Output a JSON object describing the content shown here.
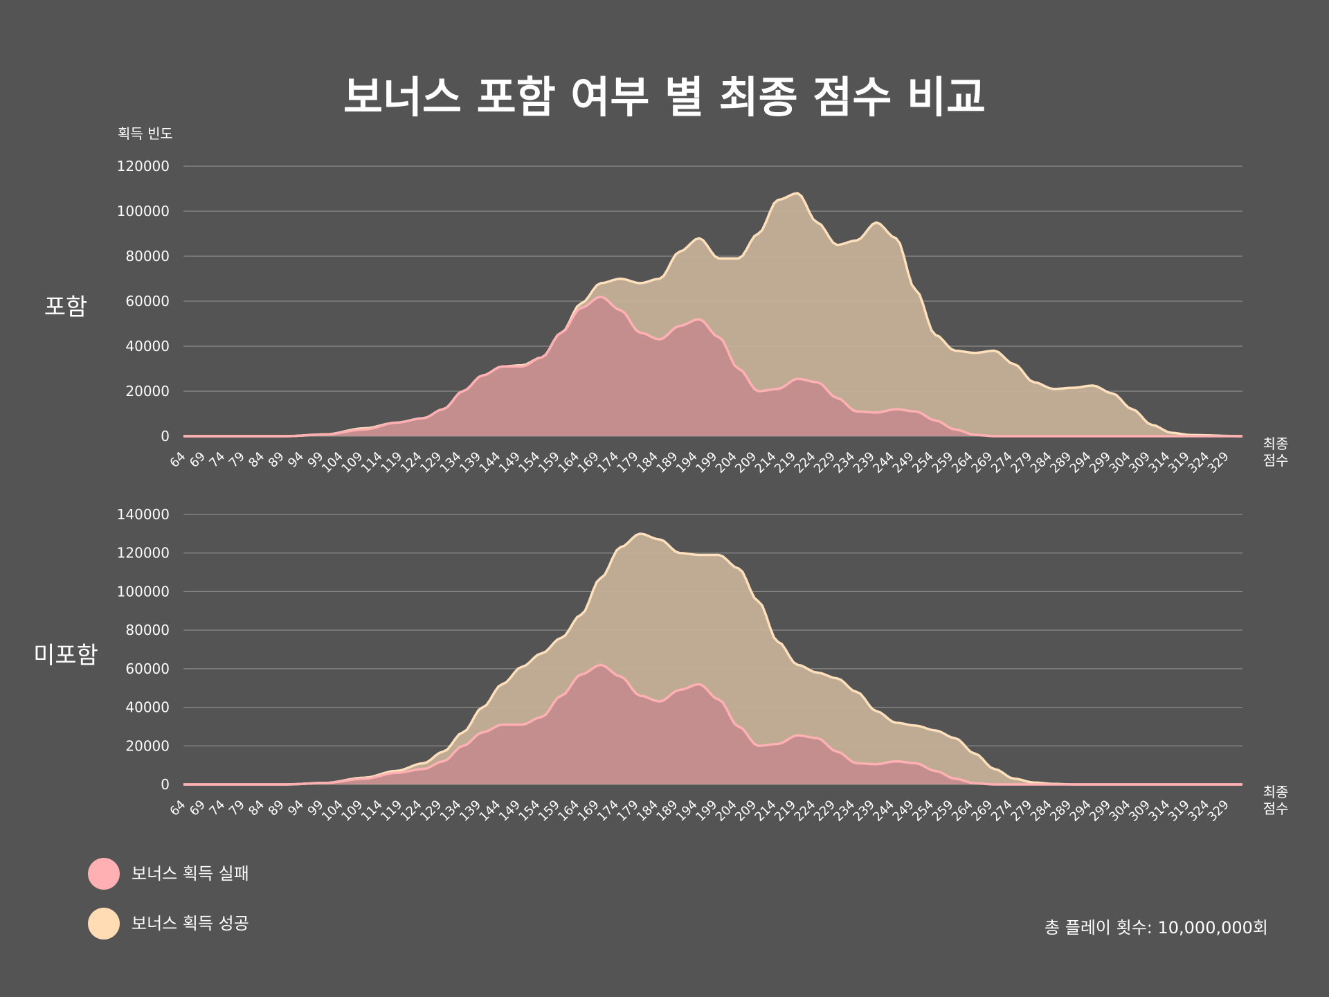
{
  "title": "보너스 포함 여부 별 최종 점수 비교",
  "y_axis_label": "획득 빈도",
  "x_axis_label_line1": "최종",
  "x_axis_label_line2": "점수",
  "footer_note": "총 플레이 횟수: 10,000,000회",
  "colors": {
    "background": "#545454",
    "fail_fill": "#c48c8e",
    "fail_line": "#ffb0b2",
    "success_fill": "#c9b29a",
    "success_line": "#ffe0bd",
    "grid": "#8a8a8a"
  },
  "legend": [
    {
      "label": "보너스 획득 실패",
      "color": "#ffb0b2"
    },
    {
      "label": "보너스 획득 성공",
      "color": "#ffdcb4"
    }
  ],
  "chart_data": [
    {
      "type": "area",
      "panel_label": "포함",
      "x_ticks": [
        64,
        69,
        74,
        79,
        84,
        89,
        94,
        99,
        104,
        109,
        114,
        119,
        124,
        129,
        134,
        139,
        144,
        149,
        154,
        159,
        164,
        169,
        174,
        179,
        184,
        189,
        194,
        199,
        204,
        209,
        214,
        219,
        224,
        229,
        234,
        239,
        244,
        249,
        254,
        259,
        264,
        269,
        274,
        279,
        284,
        289,
        294,
        299,
        304,
        309,
        314,
        319,
        324,
        329
      ],
      "y_ticks": [
        0,
        20000,
        40000,
        60000,
        80000,
        100000,
        120000
      ],
      "xlim": [
        64,
        333
      ],
      "ylim": [
        0,
        120000
      ],
      "grid": true,
      "series": [
        {
          "name": "보너스 획득 성공",
          "points": [
            [
              64,
              0
            ],
            [
              90,
              0
            ],
            [
              100,
              800
            ],
            [
              110,
              3500
            ],
            [
              118,
              6000
            ],
            [
              125,
              8000
            ],
            [
              130,
              12000
            ],
            [
              135,
              20000
            ],
            [
              140,
              27000
            ],
            [
              145,
              31000
            ],
            [
              150,
              31500
            ],
            [
              155,
              35000
            ],
            [
              160,
              46000
            ],
            [
              165,
              59000
            ],
            [
              170,
              68000
            ],
            [
              175,
              70000
            ],
            [
              180,
              68000
            ],
            [
              185,
              70000
            ],
            [
              190,
              82000
            ],
            [
              195,
              88000
            ],
            [
              200,
              79000
            ],
            [
              205,
              79000
            ],
            [
              210,
              90000
            ],
            [
              215,
              105000
            ],
            [
              220,
              108000
            ],
            [
              225,
              95000
            ],
            [
              230,
              85000
            ],
            [
              235,
              87000
            ],
            [
              240,
              95000
            ],
            [
              245,
              88000
            ],
            [
              250,
              65000
            ],
            [
              255,
              45000
            ],
            [
              260,
              38000
            ],
            [
              265,
              37000
            ],
            [
              270,
              38000
            ],
            [
              275,
              32000
            ],
            [
              280,
              24000
            ],
            [
              285,
              21000
            ],
            [
              290,
              21500
            ],
            [
              295,
              22500
            ],
            [
              300,
              19000
            ],
            [
              305,
              12000
            ],
            [
              310,
              5000
            ],
            [
              315,
              1500
            ],
            [
              320,
              500
            ],
            [
              333,
              0
            ]
          ]
        },
        {
          "name": "보너스 획득 실패",
          "points": [
            [
              64,
              0
            ],
            [
              90,
              0
            ],
            [
              100,
              800
            ],
            [
              110,
              3000
            ],
            [
              118,
              6000
            ],
            [
              125,
              8000
            ],
            [
              130,
              12000
            ],
            [
              135,
              20000
            ],
            [
              140,
              27000
            ],
            [
              145,
              31000
            ],
            [
              150,
              31000
            ],
            [
              155,
              35000
            ],
            [
              160,
              46000
            ],
            [
              165,
              57000
            ],
            [
              170,
              62000
            ],
            [
              175,
              56000
            ],
            [
              180,
              46000
            ],
            [
              185,
              43000
            ],
            [
              190,
              49000
            ],
            [
              195,
              52000
            ],
            [
              200,
              44000
            ],
            [
              205,
              30000
            ],
            [
              210,
              20000
            ],
            [
              215,
              21000
            ],
            [
              220,
              25500
            ],
            [
              225,
              24000
            ],
            [
              230,
              17000
            ],
            [
              235,
              11000
            ],
            [
              240,
              10500
            ],
            [
              245,
              12000
            ],
            [
              250,
              11000
            ],
            [
              255,
              7000
            ],
            [
              260,
              3000
            ],
            [
              265,
              600
            ],
            [
              270,
              0
            ],
            [
              333,
              0
            ]
          ]
        }
      ]
    },
    {
      "type": "area",
      "panel_label": "미포함",
      "x_ticks": [
        64,
        69,
        74,
        79,
        84,
        89,
        94,
        99,
        104,
        109,
        114,
        119,
        124,
        129,
        134,
        139,
        144,
        149,
        154,
        159,
        164,
        169,
        174,
        179,
        184,
        189,
        194,
        199,
        204,
        209,
        214,
        219,
        224,
        229,
        234,
        239,
        244,
        249,
        254,
        259,
        264,
        269,
        274,
        279,
        284,
        289,
        294,
        299,
        304,
        309,
        314,
        319,
        324,
        329
      ],
      "y_ticks": [
        0,
        20000,
        40000,
        60000,
        80000,
        100000,
        120000,
        140000
      ],
      "xlim": [
        64,
        333
      ],
      "ylim": [
        0,
        140000
      ],
      "grid": true,
      "series": [
        {
          "name": "보너스 획득 성공",
          "points": [
            [
              64,
              0
            ],
            [
              90,
              0
            ],
            [
              100,
              800
            ],
            [
              110,
              3500
            ],
            [
              118,
              7000
            ],
            [
              125,
              11000
            ],
            [
              130,
              17000
            ],
            [
              135,
              27000
            ],
            [
              140,
              40000
            ],
            [
              145,
              52000
            ],
            [
              150,
              61000
            ],
            [
              155,
              68000
            ],
            [
              160,
              76000
            ],
            [
              165,
              88000
            ],
            [
              170,
              107000
            ],
            [
              175,
              123000
            ],
            [
              180,
              130000
            ],
            [
              185,
              127000
            ],
            [
              190,
              120000
            ],
            [
              195,
              119000
            ],
            [
              200,
              119000
            ],
            [
              205,
              112000
            ],
            [
              210,
              95000
            ],
            [
              215,
              74000
            ],
            [
              220,
              62000
            ],
            [
              225,
              58000
            ],
            [
              230,
              55000
            ],
            [
              235,
              48000
            ],
            [
              240,
              38000
            ],
            [
              245,
              32000
            ],
            [
              250,
              30500
            ],
            [
              255,
              28000
            ],
            [
              260,
              24000
            ],
            [
              265,
              16000
            ],
            [
              270,
              8000
            ],
            [
              275,
              3000
            ],
            [
              280,
              1000
            ],
            [
              285,
              300
            ],
            [
              290,
              0
            ],
            [
              333,
              0
            ]
          ]
        },
        {
          "name": "보너스 획득 실패",
          "points": [
            [
              64,
              0
            ],
            [
              90,
              0
            ],
            [
              100,
              800
            ],
            [
              110,
              3000
            ],
            [
              118,
              6000
            ],
            [
              125,
              8000
            ],
            [
              130,
              12000
            ],
            [
              135,
              20000
            ],
            [
              140,
              27000
            ],
            [
              145,
              31000
            ],
            [
              150,
              31000
            ],
            [
              155,
              35000
            ],
            [
              160,
              46000
            ],
            [
              165,
              57000
            ],
            [
              170,
              62000
            ],
            [
              175,
              56000
            ],
            [
              180,
              46000
            ],
            [
              185,
              43000
            ],
            [
              190,
              49000
            ],
            [
              195,
              52000
            ],
            [
              200,
              44000
            ],
            [
              205,
              30000
            ],
            [
              210,
              20000
            ],
            [
              215,
              21000
            ],
            [
              220,
              25500
            ],
            [
              225,
              24000
            ],
            [
              230,
              17000
            ],
            [
              235,
              11000
            ],
            [
              240,
              10500
            ],
            [
              245,
              12000
            ],
            [
              250,
              11000
            ],
            [
              255,
              7000
            ],
            [
              260,
              3000
            ],
            [
              265,
              600
            ],
            [
              270,
              0
            ],
            [
              333,
              0
            ]
          ]
        }
      ]
    }
  ]
}
